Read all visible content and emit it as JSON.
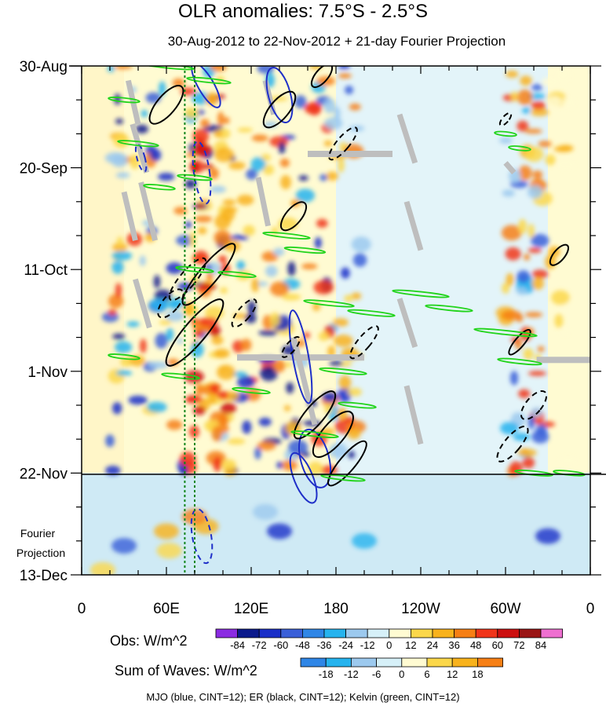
{
  "chart_data": {
    "type": "heatmap",
    "title": "OLR anomalies: 7.5°S - 2.5°S",
    "subtitle": "30-Aug-2012 to 22-Nov-2012 + 21-day Fourier Projection",
    "x_ticks": [
      "0",
      "60E",
      "120E",
      "180",
      "120W",
      "60W",
      "0"
    ],
    "x_tick_values": [
      0,
      60,
      120,
      180,
      240,
      300,
      360
    ],
    "xlim": [
      0,
      360
    ],
    "y_ticks": [
      "30-Aug",
      "20-Sep",
      "11-Oct",
      "1-Nov",
      "22-Nov",
      "13-Dec"
    ],
    "y_tick_days": [
      0,
      21,
      42,
      63,
      84,
      105
    ],
    "ylim_days": [
      0,
      105
    ],
    "projection_label": [
      "Fourier",
      "Projection"
    ],
    "projection_start_day": 84,
    "obs_colorbar": {
      "label": "Obs: W/m^2",
      "levels": [
        "-84",
        "-72",
        "-60",
        "-48",
        "-36",
        "-24",
        "-12",
        "0",
        "12",
        "24",
        "36",
        "48",
        "60",
        "72",
        "84"
      ],
      "colors": [
        "#8b2be2",
        "#0b1a8c",
        "#1a2fc8",
        "#3a5fd8",
        "#2f86e6",
        "#26b3ee",
        "#9cc9ee",
        "#d6f0f8",
        "#fffbd2",
        "#fbd74a",
        "#f8b21c",
        "#f67f15",
        "#f0351a",
        "#cc1010",
        "#9a1515",
        "#ee6fd0"
      ]
    },
    "waves_colorbar": {
      "label": "Sum of Waves: W/m^2",
      "levels": [
        "-18",
        "-12",
        "-6",
        "0",
        "6",
        "12",
        "18"
      ],
      "colors": [
        "#2f86e6",
        "#26b3ee",
        "#9cc9ee",
        "#d6f0f8",
        "#fffbd2",
        "#fbd74a",
        "#f8b21c",
        "#f67f15"
      ]
    },
    "footer": "MJO (blue, CINT=12); ER (black, CINT=12); Kelvin (green, CINT=12)",
    "dashed_lines_lon": [
      73,
      80
    ],
    "missing_color": "#bebebe"
  }
}
